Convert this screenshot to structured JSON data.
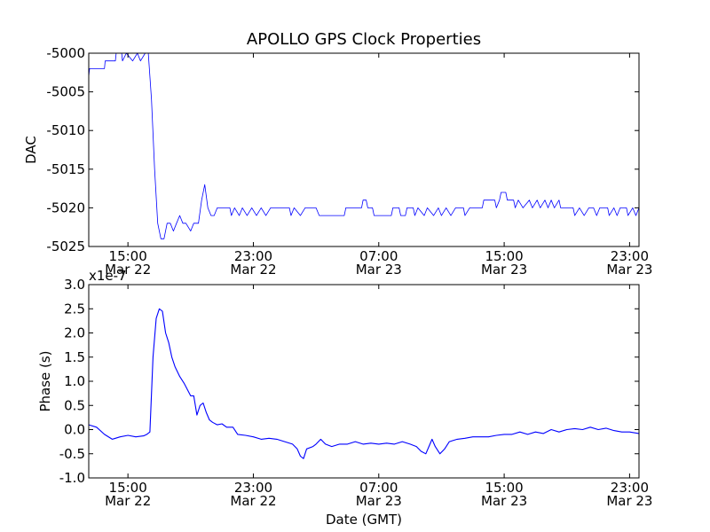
{
  "title": "APOLLO GPS Clock Properties",
  "chart_data": [
    {
      "type": "line",
      "ylabel": "DAC",
      "xlabel": "",
      "ylim": [
        -5025,
        -5000
      ],
      "yticks": [
        "-5000",
        "-5005",
        "-5010",
        "-5015",
        "-5020",
        "-5025"
      ],
      "xticks": [
        {
          "time": "15:00",
          "date": "Mar 22"
        },
        {
          "time": "23:00",
          "date": "Mar 22"
        },
        {
          "time": "07:00",
          "date": "Mar 23"
        },
        {
          "time": "15:00",
          "date": "Mar 23"
        },
        {
          "time": "23:00",
          "date": "Mar 23"
        }
      ],
      "x_hours_range": [
        12.5,
        47.6
      ],
      "color": "#0000ff",
      "series": [
        {
          "points": [
            [
              12.5,
              -5003
            ],
            [
              12.55,
              -5002
            ],
            [
              13.5,
              -5002
            ],
            [
              13.55,
              -5001
            ],
            [
              14.2,
              -5001
            ],
            [
              14.25,
              -5000
            ],
            [
              14.6,
              -5000
            ],
            [
              14.65,
              -5001
            ],
            [
              14.9,
              -5000
            ],
            [
              15.3,
              -5001
            ],
            [
              15.6,
              -5000
            ],
            [
              15.8,
              -5001
            ],
            [
              16.1,
              -5000
            ],
            [
              16.3,
              -5000
            ],
            [
              16.5,
              -5006
            ],
            [
              16.7,
              -5015
            ],
            [
              16.9,
              -5022
            ],
            [
              17.1,
              -5024
            ],
            [
              17.3,
              -5024
            ],
            [
              17.5,
              -5022
            ],
            [
              17.7,
              -5022
            ],
            [
              17.9,
              -5023
            ],
            [
              18.1,
              -5022
            ],
            [
              18.3,
              -5021
            ],
            [
              18.5,
              -5022
            ],
            [
              18.7,
              -5022
            ],
            [
              19.0,
              -5023
            ],
            [
              19.2,
              -5022
            ],
            [
              19.5,
              -5022
            ],
            [
              19.7,
              -5019
            ],
            [
              19.9,
              -5017
            ],
            [
              20.1,
              -5020
            ],
            [
              20.3,
              -5021
            ],
            [
              20.5,
              -5021
            ],
            [
              20.7,
              -5020
            ],
            [
              21.5,
              -5020
            ],
            [
              21.6,
              -5021
            ],
            [
              21.8,
              -5020
            ],
            [
              22.1,
              -5021
            ],
            [
              22.3,
              -5020
            ],
            [
              22.6,
              -5021
            ],
            [
              22.9,
              -5020
            ],
            [
              23.2,
              -5021
            ],
            [
              23.5,
              -5020
            ],
            [
              23.8,
              -5021
            ],
            [
              24.1,
              -5020
            ],
            [
              25.3,
              -5020
            ],
            [
              25.4,
              -5021
            ],
            [
              25.6,
              -5020
            ],
            [
              26.0,
              -5021
            ],
            [
              26.3,
              -5020
            ],
            [
              27.0,
              -5020
            ],
            [
              27.2,
              -5021
            ],
            [
              28.8,
              -5021
            ],
            [
              28.9,
              -5020
            ],
            [
              29.9,
              -5020
            ],
            [
              30.0,
              -5019
            ],
            [
              30.2,
              -5019
            ],
            [
              30.3,
              -5020
            ],
            [
              30.6,
              -5020
            ],
            [
              30.7,
              -5021
            ],
            [
              31.8,
              -5021
            ],
            [
              31.9,
              -5020
            ],
            [
              32.3,
              -5020
            ],
            [
              32.4,
              -5021
            ],
            [
              32.7,
              -5021
            ],
            [
              32.8,
              -5020
            ],
            [
              33.2,
              -5020
            ],
            [
              33.3,
              -5021
            ],
            [
              33.5,
              -5020
            ],
            [
              33.9,
              -5021
            ],
            [
              34.1,
              -5020
            ],
            [
              34.5,
              -5021
            ],
            [
              34.8,
              -5020
            ],
            [
              35.0,
              -5021
            ],
            [
              35.3,
              -5020
            ],
            [
              35.6,
              -5021
            ],
            [
              35.9,
              -5020
            ],
            [
              36.4,
              -5020
            ],
            [
              36.5,
              -5021
            ],
            [
              36.8,
              -5020
            ],
            [
              37.6,
              -5020
            ],
            [
              37.7,
              -5019
            ],
            [
              38.4,
              -5019
            ],
            [
              38.5,
              -5020
            ],
            [
              38.7,
              -5019
            ],
            [
              38.8,
              -5018
            ],
            [
              39.1,
              -5018
            ],
            [
              39.2,
              -5019
            ],
            [
              39.6,
              -5019
            ],
            [
              39.7,
              -5020
            ],
            [
              39.9,
              -5019
            ],
            [
              40.2,
              -5020
            ],
            [
              40.6,
              -5019
            ],
            [
              40.8,
              -5020
            ],
            [
              41.1,
              -5019
            ],
            [
              41.3,
              -5020
            ],
            [
              41.6,
              -5019
            ],
            [
              41.8,
              -5020
            ],
            [
              42.0,
              -5019
            ],
            [
              42.2,
              -5020
            ],
            [
              42.5,
              -5019
            ],
            [
              42.6,
              -5020
            ],
            [
              43.1,
              -5020
            ],
            [
              43.4,
              -5020
            ],
            [
              43.5,
              -5021
            ],
            [
              43.8,
              -5020
            ],
            [
              44.1,
              -5021
            ],
            [
              44.4,
              -5020
            ],
            [
              44.7,
              -5020
            ],
            [
              44.9,
              -5021
            ],
            [
              45.1,
              -5020
            ],
            [
              45.6,
              -5020
            ],
            [
              45.7,
              -5021
            ],
            [
              46.0,
              -5020
            ],
            [
              46.2,
              -5021
            ],
            [
              46.4,
              -5020
            ],
            [
              46.8,
              -5020
            ],
            [
              46.9,
              -5021
            ],
            [
              47.2,
              -5020
            ],
            [
              47.4,
              -5021
            ],
            [
              47.6,
              -5020
            ]
          ]
        }
      ]
    },
    {
      "type": "line",
      "ylabel": "Phase (s)",
      "xlabel": "Date (GMT)",
      "scale_label": "x1e-7",
      "ylim": [
        -1.0,
        3.0
      ],
      "yticks": [
        "3.0",
        "2.5",
        "2.0",
        "1.5",
        "1.0",
        "0.5",
        "0.0",
        "-0.5",
        "-1.0"
      ],
      "xticks": [
        {
          "time": "15:00",
          "date": "Mar 22"
        },
        {
          "time": "23:00",
          "date": "Mar 22"
        },
        {
          "time": "07:00",
          "date": "Mar 23"
        },
        {
          "time": "15:00",
          "date": "Mar 23"
        },
        {
          "time": "23:00",
          "date": "Mar 23"
        }
      ],
      "x_hours_range": [
        12.5,
        47.6
      ],
      "color": "#0000ff",
      "series": [
        {
          "points": [
            [
              12.5,
              0.1
            ],
            [
              13.0,
              0.05
            ],
            [
              13.5,
              -0.1
            ],
            [
              14.0,
              -0.2
            ],
            [
              14.5,
              -0.15
            ],
            [
              15.0,
              -0.12
            ],
            [
              15.5,
              -0.15
            ],
            [
              16.0,
              -0.13
            ],
            [
              16.2,
              -0.1
            ],
            [
              16.4,
              -0.05
            ],
            [
              16.6,
              1.5
            ],
            [
              16.8,
              2.3
            ],
            [
              17.0,
              2.5
            ],
            [
              17.2,
              2.45
            ],
            [
              17.4,
              2.0
            ],
            [
              17.6,
              1.8
            ],
            [
              17.8,
              1.5
            ],
            [
              18.0,
              1.3
            ],
            [
              18.3,
              1.1
            ],
            [
              18.6,
              0.95
            ],
            [
              19.0,
              0.7
            ],
            [
              19.2,
              0.7
            ],
            [
              19.4,
              0.3
            ],
            [
              19.6,
              0.5
            ],
            [
              19.8,
              0.55
            ],
            [
              20.0,
              0.35
            ],
            [
              20.2,
              0.2
            ],
            [
              20.4,
              0.15
            ],
            [
              20.7,
              0.1
            ],
            [
              21.0,
              0.12
            ],
            [
              21.3,
              0.05
            ],
            [
              21.7,
              0.05
            ],
            [
              22.0,
              -0.1
            ],
            [
              22.5,
              -0.12
            ],
            [
              23.0,
              -0.15
            ],
            [
              23.5,
              -0.2
            ],
            [
              24.0,
              -0.18
            ],
            [
              24.5,
              -0.2
            ],
            [
              25.0,
              -0.25
            ],
            [
              25.5,
              -0.3
            ],
            [
              25.8,
              -0.4
            ],
            [
              26.0,
              -0.55
            ],
            [
              26.2,
              -0.6
            ],
            [
              26.4,
              -0.4
            ],
            [
              26.8,
              -0.35
            ],
            [
              27.0,
              -0.3
            ],
            [
              27.3,
              -0.2
            ],
            [
              27.6,
              -0.3
            ],
            [
              28.0,
              -0.35
            ],
            [
              28.5,
              -0.3
            ],
            [
              29.0,
              -0.3
            ],
            [
              29.5,
              -0.25
            ],
            [
              30.0,
              -0.3
            ],
            [
              30.5,
              -0.28
            ],
            [
              31.0,
              -0.3
            ],
            [
              31.5,
              -0.28
            ],
            [
              32.0,
              -0.3
            ],
            [
              32.5,
              -0.25
            ],
            [
              33.0,
              -0.3
            ],
            [
              33.4,
              -0.35
            ],
            [
              33.7,
              -0.45
            ],
            [
              34.0,
              -0.5
            ],
            [
              34.2,
              -0.35
            ],
            [
              34.4,
              -0.2
            ],
            [
              34.6,
              -0.35
            ],
            [
              34.9,
              -0.5
            ],
            [
              35.2,
              -0.4
            ],
            [
              35.5,
              -0.25
            ],
            [
              36.0,
              -0.2
            ],
            [
              36.5,
              -0.18
            ],
            [
              37.0,
              -0.15
            ],
            [
              37.5,
              -0.15
            ],
            [
              38.0,
              -0.15
            ],
            [
              38.5,
              -0.12
            ],
            [
              39.0,
              -0.1
            ],
            [
              39.5,
              -0.1
            ],
            [
              40.0,
              -0.05
            ],
            [
              40.5,
              -0.1
            ],
            [
              41.0,
              -0.05
            ],
            [
              41.5,
              -0.08
            ],
            [
              42.0,
              0.0
            ],
            [
              42.5,
              -0.05
            ],
            [
              43.0,
              0.0
            ],
            [
              43.5,
              0.02
            ],
            [
              44.0,
              0.0
            ],
            [
              44.5,
              0.05
            ],
            [
              45.0,
              0.0
            ],
            [
              45.5,
              0.03
            ],
            [
              46.0,
              -0.02
            ],
            [
              46.5,
              -0.05
            ],
            [
              47.0,
              -0.05
            ],
            [
              47.6,
              -0.08
            ]
          ]
        }
      ]
    }
  ]
}
